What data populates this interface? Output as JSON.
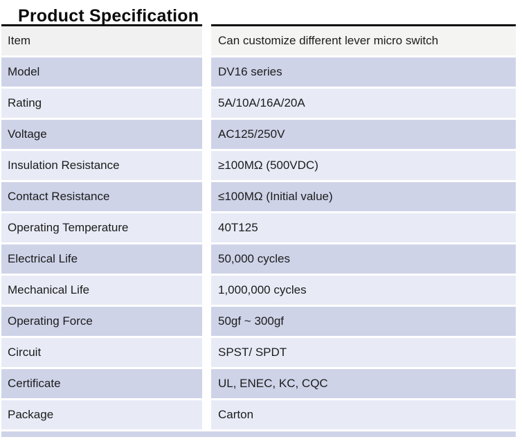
{
  "page": {
    "title": "Product Specification"
  },
  "table": {
    "rows": [
      {
        "label": "Item",
        "value": "Can customize different lever micro switch"
      },
      {
        "label": "Model",
        "value": "DV16 series"
      },
      {
        "label": "Rating",
        "value": "5A/10A/16A/20A"
      },
      {
        "label": "Voltage",
        "value": "AC125/250V"
      },
      {
        "label": "Insulation Resistance",
        "value": "≥100MΩ (500VDC)"
      },
      {
        "label": "Contact Resistance",
        "value": "≤100MΩ (Initial value)"
      },
      {
        "label": "Operating Temperature",
        "value": "40T125"
      },
      {
        "label": "Electrical Life",
        "value": "50,000 cycles"
      },
      {
        "label": "Mechanical Life",
        "value": "1,000,000 cycles"
      },
      {
        "label": "Operating Force",
        "value": "50gf ~ 300gf"
      },
      {
        "label": "Circuit",
        "value": "SPST/ SPDT"
      },
      {
        "label": "Certificate",
        "value": "UL, ENEC, KC, CQC"
      },
      {
        "label": "Package",
        "value": "Carton"
      }
    ]
  },
  "colors": {
    "top_border": "#0d0d0d",
    "row_header_label_bg": "#f1f1f1",
    "row_header_value_bg": "#f4f4f2",
    "row_dark_bg": "#ced3e8",
    "row_light_bg": "#e8ebf6",
    "text": "#1c1c1c"
  }
}
